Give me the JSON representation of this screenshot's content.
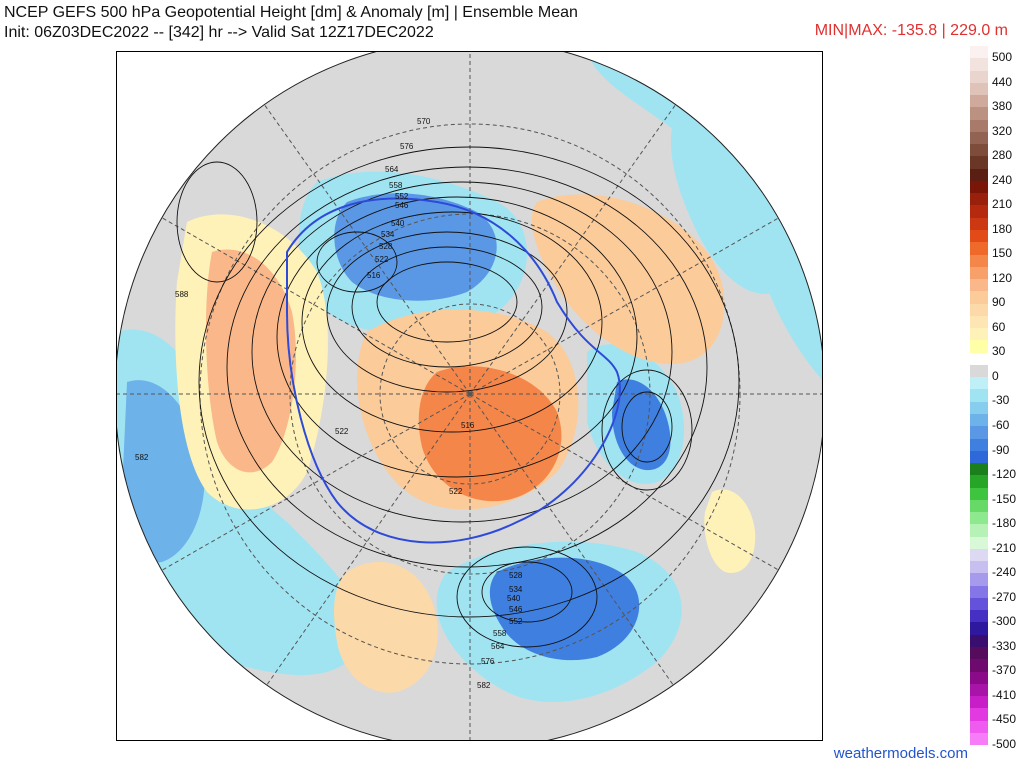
{
  "header": {
    "title_line1": "NCEP GEFS 500 hPa Geopotential Height [dm] & Anomaly [m] | Ensemble Mean",
    "title_line2": "Init: 06Z03DEC2022 -- [342] hr --> Valid Sat 12Z17DEC2022",
    "minmax": "MIN|MAX: -135.8 | 229.0 m"
  },
  "colors": {
    "minmax_text": "#e03030",
    "credit_text": "#2255cc",
    "land_neutral": "#d9d9d9",
    "ocean_neutral": "#ffffff"
  },
  "colorbar": [
    {
      "label": "500",
      "color": "#fbf1f0"
    },
    {
      "label": "",
      "color": "#f3e3df"
    },
    {
      "label": "440",
      "color": "#ead5ce"
    },
    {
      "label": "",
      "color": "#dfc2b8"
    },
    {
      "label": "380",
      "color": "#cfaa9c"
    },
    {
      "label": "",
      "color": "#bb9182"
    },
    {
      "label": "320",
      "color": "#a77a6a"
    },
    {
      "label": "",
      "color": "#926352"
    },
    {
      "label": "280",
      "color": "#7d4c3b"
    },
    {
      "label": "",
      "color": "#6a3626"
    },
    {
      "label": "240",
      "color": "#5a1f12"
    },
    {
      "label": "",
      "color": "#7a1608"
    },
    {
      "label": "210",
      "color": "#99200a"
    },
    {
      "label": "",
      "color": "#b52a0e"
    },
    {
      "label": "180",
      "color": "#cc3812"
    },
    {
      "label": "",
      "color": "#e24a18"
    },
    {
      "label": "150",
      "color": "#ef6a2a"
    },
    {
      "label": "",
      "color": "#f5864a"
    },
    {
      "label": "120",
      "color": "#f8a06a"
    },
    {
      "label": "",
      "color": "#fab88a"
    },
    {
      "label": "90",
      "color": "#fbcb9a"
    },
    {
      "label": "",
      "color": "#fcd9a8"
    },
    {
      "label": "60",
      "color": "#fde6b4"
    },
    {
      "label": "",
      "color": "#fff2b8"
    },
    {
      "label": "30",
      "color": "#ffffa8"
    },
    {
      "label": "",
      "color": "#ffffffff"
    },
    {
      "label": "0",
      "color": "#d9d9d9"
    },
    {
      "label": "",
      "color": "#c0f0f7"
    },
    {
      "label": "-30",
      "color": "#a0e4f2"
    },
    {
      "label": "",
      "color": "#86cdee"
    },
    {
      "label": "-60",
      "color": "#6eb2ea"
    },
    {
      "label": "",
      "color": "#5a98e6"
    },
    {
      "label": "-90",
      "color": "#3f7fe0"
    },
    {
      "label": "",
      "color": "#2f68d8"
    },
    {
      "label": "-120",
      "color": "#1b7f1b"
    },
    {
      "label": "",
      "color": "#26a526"
    },
    {
      "label": "-150",
      "color": "#3fc43f"
    },
    {
      "label": "",
      "color": "#66d966"
    },
    {
      "label": "-180",
      "color": "#8ee88e"
    },
    {
      "label": "",
      "color": "#b6f2b6"
    },
    {
      "label": "-210",
      "color": "#d8f8d8"
    },
    {
      "label": "",
      "color": "#ded9f2"
    },
    {
      "label": "-240",
      "color": "#c7bff0"
    },
    {
      "label": "",
      "color": "#a69aec"
    },
    {
      "label": "-270",
      "color": "#8476e6"
    },
    {
      "label": "",
      "color": "#6452db"
    },
    {
      "label": "-300",
      "color": "#4630c4"
    },
    {
      "label": "",
      "color": "#2e189e"
    },
    {
      "label": "-330",
      "color": "#3a0e6e"
    },
    {
      "label": "",
      "color": "#550c5c"
    },
    {
      "label": "-370",
      "color": "#6e0a6e"
    },
    {
      "label": "",
      "color": "#8a0a8a"
    },
    {
      "label": "-410",
      "color": "#a814a8"
    },
    {
      "label": "",
      "color": "#c81ec8"
    },
    {
      "label": "-450",
      "color": "#e03ae0"
    },
    {
      "label": "",
      "color": "#ef5aef"
    },
    {
      "label": "-500",
      "color": "#f77cf7"
    }
  ],
  "contour_labels": [
    "570",
    "576",
    "564",
    "558",
    "552",
    "546",
    "540",
    "534",
    "528",
    "522",
    "516",
    "588",
    "582",
    "522",
    "516",
    "522",
    "528",
    "534",
    "540",
    "546",
    "552",
    "558",
    "564",
    "576",
    "582"
  ],
  "credit": "weathermodels.com"
}
